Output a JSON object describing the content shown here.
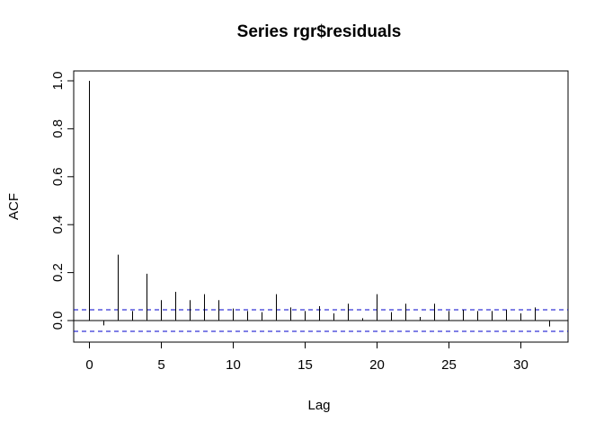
{
  "chart_data": {
    "type": "bar",
    "title": "Series  rgr$residuals",
    "xlabel": "Lag",
    "ylabel": "ACF",
    "xlim": [
      -1.28,
      33.28
    ],
    "ylim": [
      -0.088,
      1.0
    ],
    "x_ticks": [
      0,
      5,
      10,
      15,
      20,
      25,
      30
    ],
    "x_tick_labels": [
      "0",
      "5",
      "10",
      "15",
      "20",
      "25",
      "30"
    ],
    "y_ticks": [
      0.0,
      0.2,
      0.4,
      0.6,
      0.8,
      1.0
    ],
    "y_tick_labels": [
      "0.0",
      "0.2",
      "0.4",
      "0.6",
      "0.8",
      "1.0"
    ],
    "lags": [
      0,
      1,
      2,
      3,
      4,
      5,
      6,
      7,
      8,
      9,
      10,
      11,
      12,
      13,
      14,
      15,
      16,
      17,
      18,
      19,
      20,
      21,
      22,
      23,
      24,
      25,
      26,
      27,
      28,
      29,
      30,
      31,
      32
    ],
    "acf": [
      1.0,
      -0.02,
      0.275,
      0.04,
      0.195,
      0.085,
      0.12,
      0.085,
      0.11,
      0.085,
      0.05,
      0.04,
      0.035,
      0.11,
      0.055,
      0.04,
      0.06,
      0.03,
      0.07,
      0.01,
      0.11,
      0.035,
      0.07,
      0.015,
      0.07,
      0.04,
      0.045,
      0.04,
      0.04,
      0.045,
      0.03,
      0.055,
      -0.025
    ],
    "confidence_band": [
      0.045,
      -0.045
    ],
    "grid": false,
    "colors": {
      "bars": "#000000",
      "confidence": "#0000cd",
      "zero_line": "#000000",
      "box": "#000000"
    }
  }
}
